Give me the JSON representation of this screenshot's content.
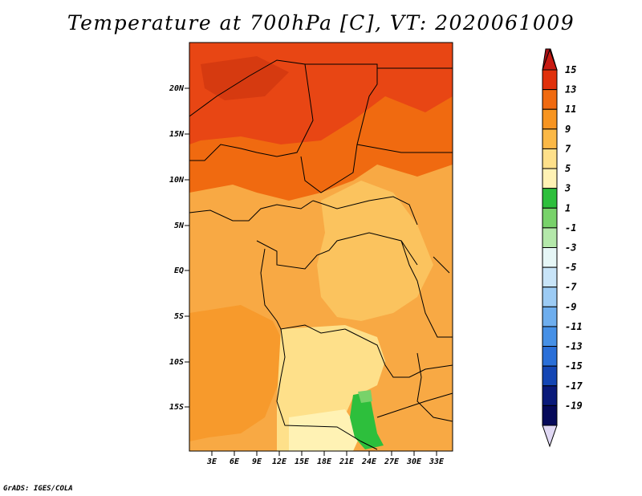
{
  "title": "Temperature at 700hPa [C], VT: 2020061009",
  "credit": "GrADS: IGES/COLA",
  "map": {
    "lat_labels": [
      "20N",
      "15N",
      "10N",
      "5N",
      "EQ",
      "5S",
      "10S",
      "15S"
    ],
    "lon_labels": [
      "3E",
      "6E",
      "9E",
      "12E",
      "15E",
      "18E",
      "21E",
      "24E",
      "27E",
      "30E",
      "33E"
    ]
  },
  "colorbar": {
    "labels": [
      "15",
      "13",
      "11",
      "9",
      "7",
      "5",
      "3",
      "1",
      "-1",
      "-3",
      "-5",
      "-7",
      "-9",
      "-11",
      "-13",
      "-15",
      "-17",
      "-19"
    ],
    "colors": [
      "#a50f15",
      "#e0300b",
      "#f06a10",
      "#f79420",
      "#fbb846",
      "#fee08a",
      "#fff2b4",
      "#2dbf3c",
      "#78d26a",
      "#b4e8aa",
      "#e6f6f6",
      "#c8e4f8",
      "#9ccbf4",
      "#6eaeee",
      "#4690e6",
      "#2a6fd8",
      "#1446b4",
      "#0a1a7a",
      "#060a5a",
      "#e0d8f4"
    ]
  }
}
